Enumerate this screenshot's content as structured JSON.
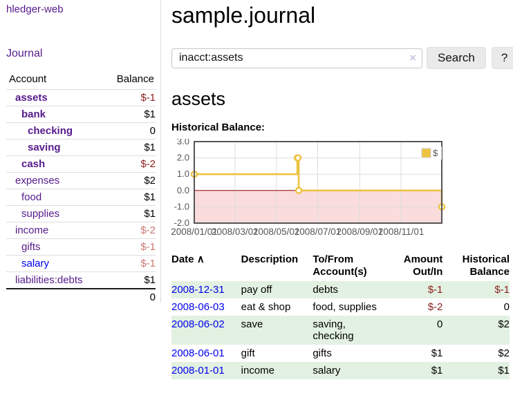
{
  "app": {
    "title": "hledger-web",
    "nav_journal": "Journal"
  },
  "sidebar": {
    "header": {
      "account": "Account",
      "balance": "Balance"
    },
    "accounts": [
      {
        "name": "assets",
        "indent": 1,
        "bold": true,
        "balance": "$-1",
        "balance_color": "neg-strong"
      },
      {
        "name": "bank",
        "indent": 2,
        "bold": true,
        "balance": "$1",
        "balance_color": "normal"
      },
      {
        "name": "checking",
        "indent": 3,
        "bold": true,
        "balance": "0",
        "balance_color": "normal"
      },
      {
        "name": "saving",
        "indent": 3,
        "bold": true,
        "balance": "$1",
        "balance_color": "normal"
      },
      {
        "name": "cash",
        "indent": 2,
        "bold": true,
        "balance": "$-2",
        "balance_color": "neg-strong"
      },
      {
        "name": "expenses",
        "indent": 1,
        "bold": false,
        "balance": "$2",
        "balance_color": "normal"
      },
      {
        "name": "food",
        "indent": 2,
        "bold": false,
        "balance": "$1",
        "balance_color": "normal"
      },
      {
        "name": "supplies",
        "indent": 2,
        "bold": false,
        "balance": "$1",
        "balance_color": "normal"
      },
      {
        "name": "income",
        "indent": 1,
        "bold": false,
        "balance": "$-2",
        "balance_color": "neg-dim"
      },
      {
        "name": "gifts",
        "indent": 2,
        "bold": false,
        "balance": "$-1",
        "balance_color": "neg-dim"
      },
      {
        "name": "salary",
        "indent": 2,
        "bold": false,
        "balance": "$-1",
        "balance_color": "neg-dim"
      },
      {
        "name": "liabilities:debts",
        "indent": 1,
        "bold": false,
        "balance": "$1",
        "balance_color": "normal"
      }
    ],
    "total": "0"
  },
  "header": {
    "title": "sample.journal"
  },
  "search": {
    "value": "inacct:assets",
    "clear_icon": "×",
    "button_label": "Search",
    "help_label": "?"
  },
  "page": {
    "account_title": "assets",
    "chart_label": "Historical Balance:"
  },
  "chart_data": {
    "type": "line",
    "step": true,
    "title": "Historical Balance",
    "legend": {
      "label": "$",
      "position": "top-right"
    },
    "ylim": [
      -2,
      3
    ],
    "yticks": [
      {
        "label": "3.0",
        "value": 3
      },
      {
        "label": "2.0",
        "value": 2
      },
      {
        "label": "1.0",
        "value": 1
      },
      {
        "label": "0.0",
        "value": 0
      },
      {
        "label": "-1.0",
        "value": -1
      },
      {
        "label": "-2.0",
        "value": -2
      }
    ],
    "xrange_days": [
      0,
      365
    ],
    "xticks": [
      {
        "label": "2008/01/01",
        "day": 0
      },
      {
        "label": "2008/03/01",
        "day": 60
      },
      {
        "label": "2008/05/01",
        "day": 121
      },
      {
        "label": "2008/07/01",
        "day": 182
      },
      {
        "label": "2008/09/01",
        "day": 244
      },
      {
        "label": "2008/11/01",
        "day": 305
      }
    ],
    "series": [
      {
        "name": "$",
        "color": "#edc240",
        "points": [
          {
            "date": "2008-01-01",
            "day": 0,
            "value": 1
          },
          {
            "date": "2008-06-01",
            "day": 152,
            "value": 2
          },
          {
            "date": "2008-06-02",
            "day": 153,
            "value": 2
          },
          {
            "date": "2008-06-03",
            "day": 154,
            "value": 0
          },
          {
            "date": "2008-12-31",
            "day": 365,
            "value": -1
          }
        ]
      }
    ],
    "grid": true,
    "zero_line_color": "#8b0000",
    "negative_region_color": "#fbdcdc",
    "grid_color": "#dddddd",
    "border_color": "#545454",
    "tick_text_color": "#545454"
  },
  "table": {
    "headers": {
      "date": "Date",
      "sort_icon": "∧",
      "description": "Description",
      "tofrom_line1": "To/From",
      "tofrom_line2": "Account(s)",
      "amount_line1": "Amount",
      "amount_line2": "Out/In",
      "historical_line1": "Historical",
      "historical_line2": "Balance"
    },
    "rows": [
      {
        "date": "2008-12-31",
        "description": "pay off",
        "accounts": "debts",
        "amount": "$-1",
        "amount_neg": true,
        "historical": "$-1",
        "historical_neg": true
      },
      {
        "date": "2008-06-03",
        "description": "eat & shop",
        "accounts": "food, supplies",
        "amount": "$-2",
        "amount_neg": true,
        "historical": "0",
        "historical_neg": false
      },
      {
        "date": "2008-06-02",
        "description": "save",
        "accounts": "saving, checking",
        "amount": "0",
        "amount_neg": false,
        "historical": "$2",
        "historical_neg": false
      },
      {
        "date": "2008-06-01",
        "description": "gift",
        "accounts": "gifts",
        "amount": "$1",
        "amount_neg": false,
        "historical": "$2",
        "historical_neg": false
      },
      {
        "date": "2008-01-01",
        "description": "income",
        "accounts": "salary",
        "amount": "$1",
        "amount_neg": false,
        "historical": "$1",
        "historical_neg": false
      }
    ]
  },
  "colors": {
    "link_purple": "#551a8b",
    "link_blue": "#0000ee",
    "negative_strong": "#8b1e1e",
    "negative_dim": "#c87873",
    "row_green": "#e2f1e1",
    "series_gold": "#edc240",
    "zero_line": "#8b0000",
    "negative_region": "#fbdcdc"
  }
}
